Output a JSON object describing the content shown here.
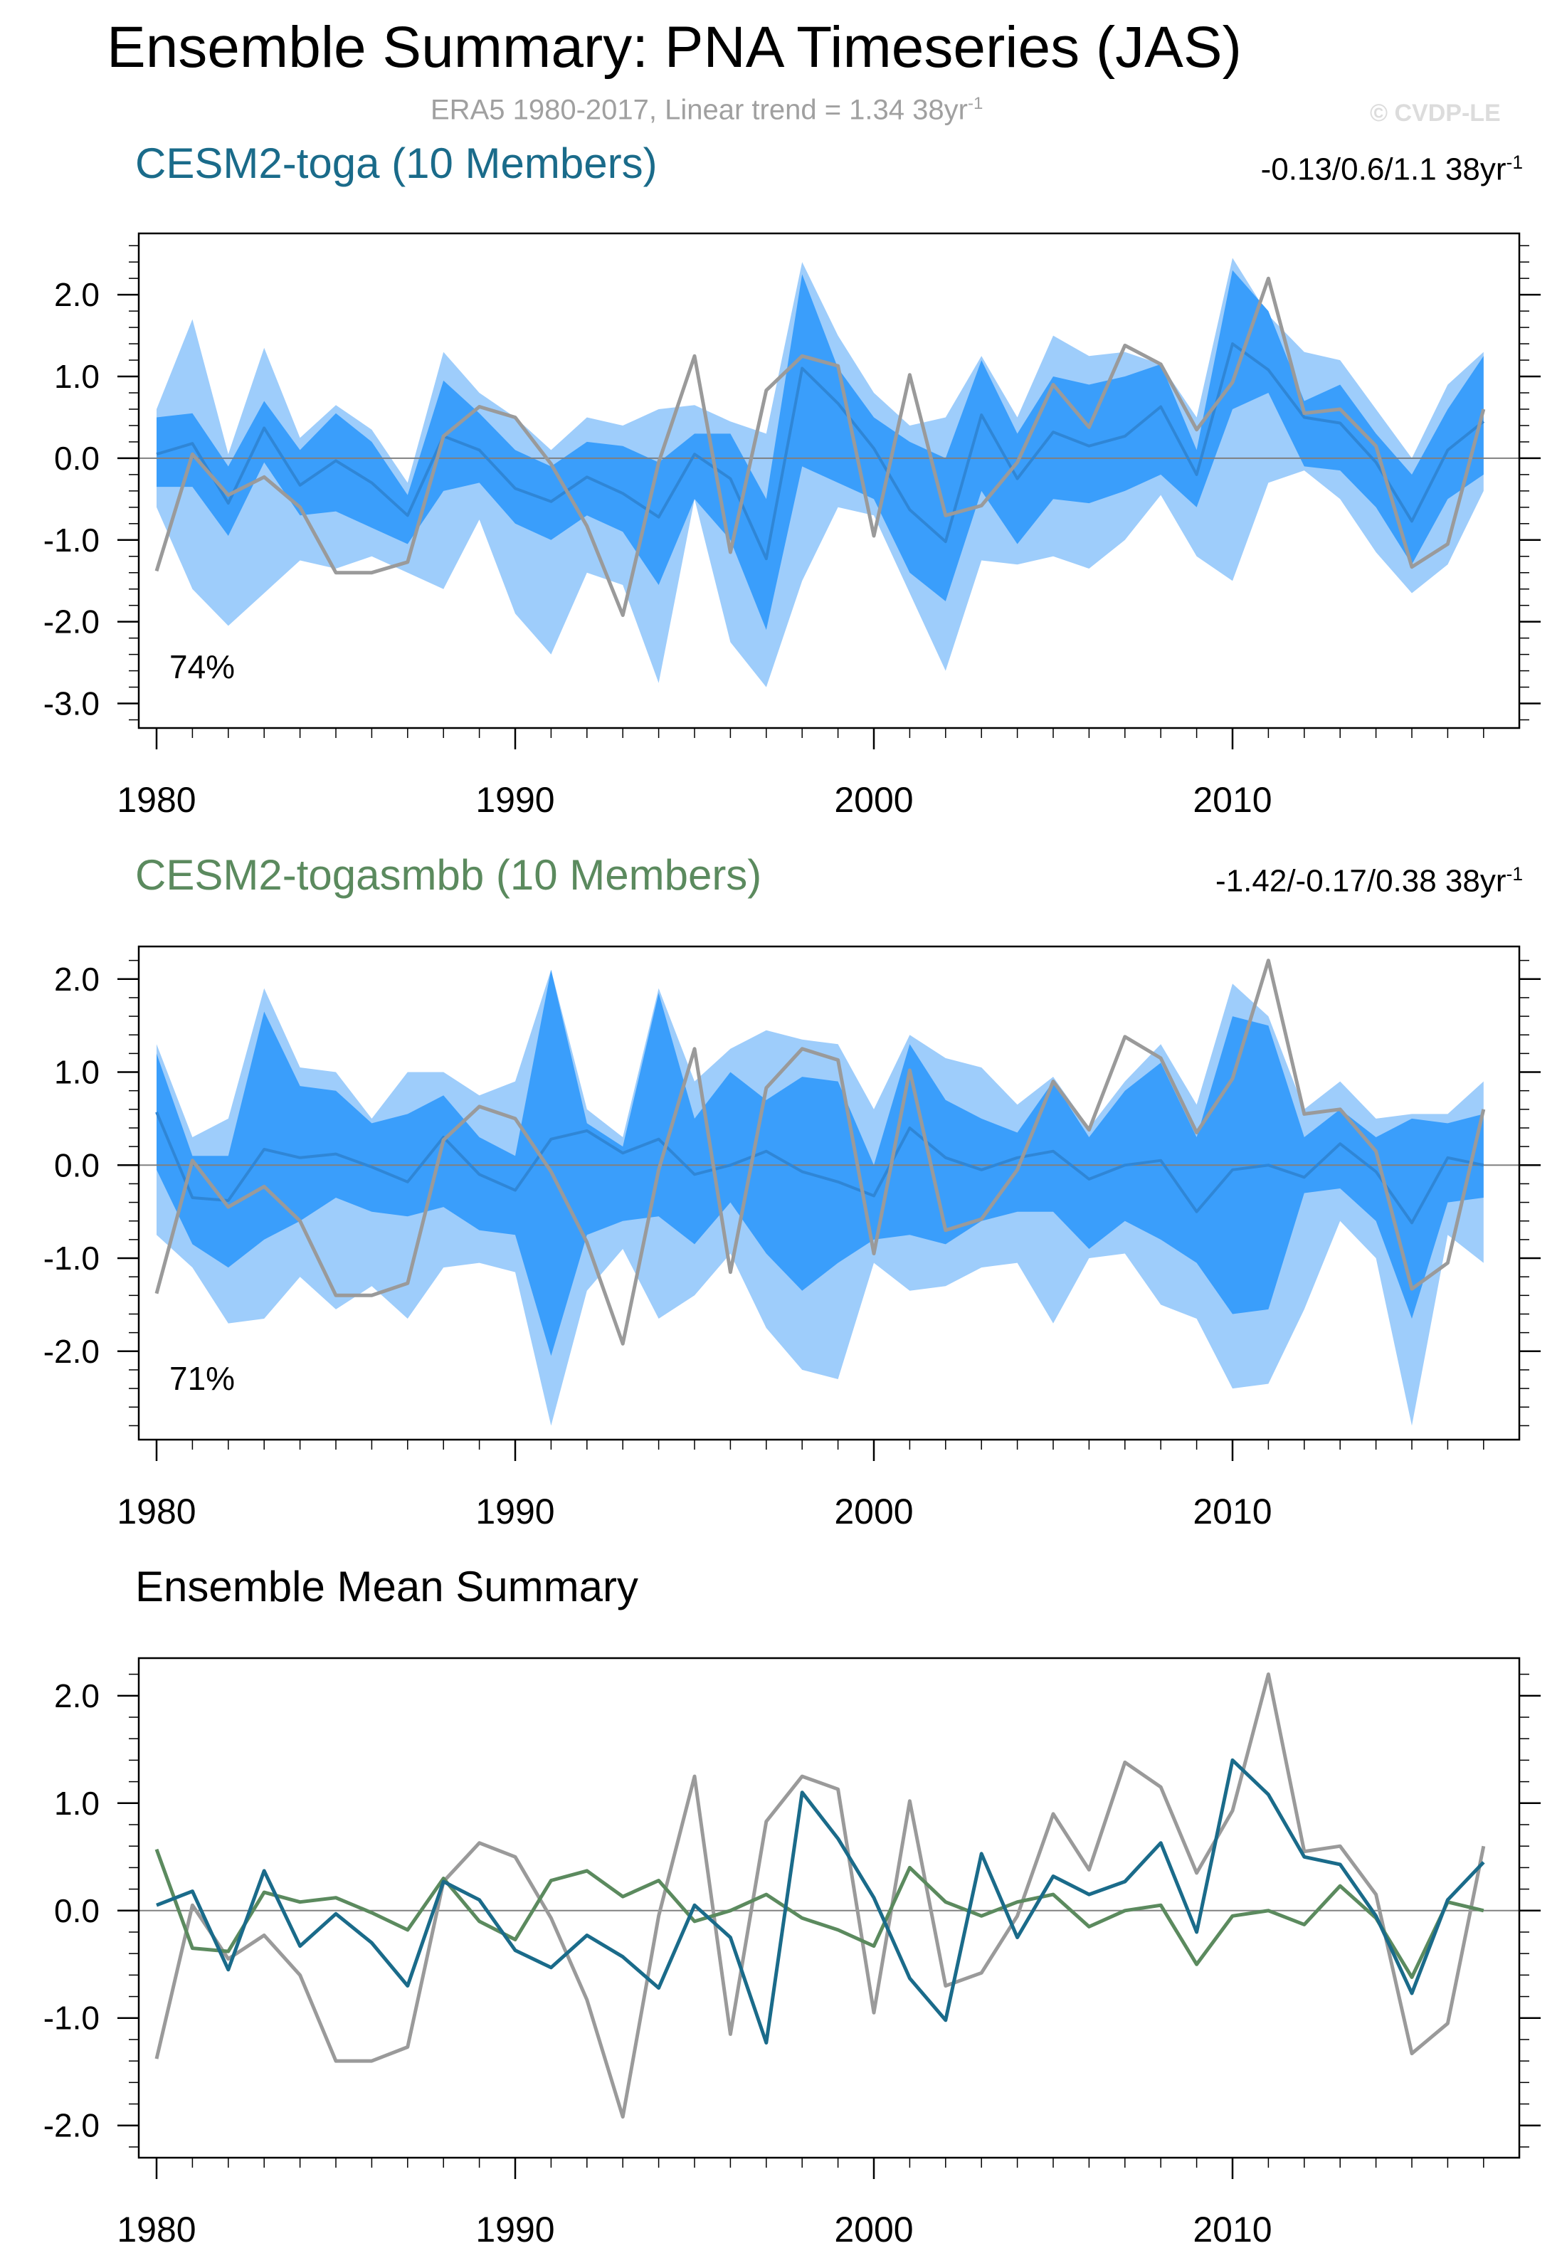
{
  "title": "Ensemble Summary: PNA Timeseries (JAS)",
  "subtitle": {
    "text": "ERA5 1980-2017, Linear trend = 1.34 38yr",
    "sup": "-1"
  },
  "credit": "© CVDP-LE",
  "colors": {
    "toga": "#1a6b8a",
    "togasmbb": "#5b8a5e",
    "obs": "#9a9a9a",
    "band_outer": "#9ecdfb",
    "band_inner": "#3a9efb",
    "member_mean": "#2f86d6",
    "zero_line": "#808080"
  },
  "panels": [
    {
      "name": "CESM2-toga (10 Members)",
      "trend": "-0.13/0.6/1.1 38yr",
      "trend_sup": "-1",
      "percent": "74%"
    },
    {
      "name": "CESM2-togasmbb (10 Members)",
      "trend": "-1.42/-0.17/0.38 38yr",
      "trend_sup": "-1",
      "percent": "71%"
    }
  ],
  "ensemble_title": "Ensemble Mean Summary",
  "chart_data": [
    {
      "type": "area",
      "title": "CESM2-toga (10 Members)",
      "x": [
        1980,
        1981,
        1982,
        1983,
        1984,
        1985,
        1986,
        1987,
        1988,
        1989,
        1990,
        1991,
        1992,
        1993,
        1994,
        1995,
        1996,
        1997,
        1998,
        1999,
        2000,
        2001,
        2002,
        2003,
        2004,
        2005,
        2006,
        2007,
        2008,
        2009,
        2010,
        2011,
        2012,
        2013,
        2014,
        2015,
        2016,
        2017
      ],
      "xlim": [
        1980,
        2017.5
      ],
      "ylim": [
        -3.3,
        2.75
      ],
      "yticks": [
        -3.0,
        -2.0,
        -1.0,
        0.0,
        1.0,
        2.0
      ],
      "ytick_labels": [
        "-3.0",
        "-2.0",
        "-1.0",
        "0.0",
        "1.0",
        "2.0"
      ],
      "xticks": [
        1980,
        1990,
        2000,
        2010
      ],
      "xtick_labels": [
        "1980",
        "1990",
        "2000",
        "2010"
      ],
      "series": [
        {
          "name": "outer_upper",
          "values": [
            0.6,
            1.7,
            0.05,
            1.35,
            0.25,
            0.65,
            0.35,
            -0.3,
            1.3,
            0.8,
            0.5,
            0.1,
            0.5,
            0.4,
            0.6,
            0.65,
            0.45,
            0.3,
            2.4,
            1.5,
            0.8,
            0.4,
            0.5,
            1.25,
            0.5,
            1.5,
            1.25,
            1.3,
            1.15,
            0.5,
            2.45,
            1.75,
            1.3,
            1.2,
            0.6,
            0.0,
            0.9,
            1.3
          ]
        },
        {
          "name": "inner_upper",
          "values": [
            0.5,
            0.55,
            -0.1,
            0.7,
            0.1,
            0.55,
            0.2,
            -0.45,
            0.95,
            0.55,
            0.1,
            -0.1,
            0.2,
            0.15,
            -0.05,
            0.3,
            0.3,
            -0.5,
            2.25,
            1.1,
            0.5,
            0.2,
            0.0,
            1.2,
            0.3,
            1.0,
            0.9,
            1.0,
            1.15,
            0.1,
            2.3,
            1.8,
            0.7,
            0.9,
            0.3,
            -0.2,
            0.6,
            1.25
          ]
        },
        {
          "name": "inner_lower",
          "values": [
            -0.35,
            -0.35,
            -0.95,
            -0.05,
            -0.7,
            -0.65,
            -0.85,
            -1.05,
            -0.4,
            -0.3,
            -0.8,
            -1.0,
            -0.7,
            -0.9,
            -1.55,
            -0.5,
            -1.0,
            -2.1,
            -0.1,
            -0.3,
            -0.5,
            -1.4,
            -1.75,
            -0.4,
            -1.05,
            -0.5,
            -0.55,
            -0.4,
            -0.2,
            -0.6,
            0.6,
            0.8,
            -0.1,
            -0.15,
            -0.6,
            -1.3,
            -0.5,
            -0.2
          ]
        },
        {
          "name": "outer_lower",
          "values": [
            -0.6,
            -1.6,
            -2.05,
            -1.65,
            -1.25,
            -1.35,
            -1.2,
            -1.4,
            -1.6,
            -0.75,
            -1.9,
            -2.4,
            -1.4,
            -1.55,
            -2.75,
            -0.5,
            -2.25,
            -2.8,
            -1.5,
            -0.6,
            -0.7,
            -1.65,
            -2.6,
            -1.25,
            -1.3,
            -1.2,
            -1.35,
            -1.0,
            -0.45,
            -1.2,
            -1.5,
            -0.3,
            -0.15,
            -0.5,
            -1.15,
            -1.65,
            -1.3,
            -0.4
          ]
        },
        {
          "name": "CESM2-toga ensemble mean",
          "values": [
            0.05,
            0.18,
            -0.55,
            0.37,
            -0.33,
            -0.03,
            -0.3,
            -0.7,
            0.27,
            0.1,
            -0.37,
            -0.53,
            -0.23,
            -0.43,
            -0.72,
            0.05,
            -0.25,
            -1.23,
            1.1,
            0.67,
            0.12,
            -0.63,
            -1.02,
            0.53,
            -0.25,
            0.32,
            0.15,
            0.27,
            0.63,
            -0.2,
            1.4,
            1.08,
            0.5,
            0.43,
            -0.05,
            -0.77,
            0.1,
            0.45
          ]
        },
        {
          "name": "ERA5",
          "values": [
            -1.38,
            0.05,
            -0.45,
            -0.23,
            -0.6,
            -1.4,
            -1.4,
            -1.27,
            0.27,
            0.63,
            0.5,
            -0.07,
            -0.83,
            -1.92,
            -0.05,
            1.25,
            -1.15,
            0.83,
            1.25,
            1.13,
            -0.95,
            1.02,
            -0.7,
            -0.58,
            -0.05,
            0.9,
            0.38,
            1.38,
            1.15,
            0.35,
            0.93,
            2.2,
            0.55,
            0.6,
            0.15,
            -1.33,
            -1.05,
            0.6
          ]
        }
      ],
      "annotation": "74%"
    },
    {
      "type": "area",
      "title": "CESM2-togasmbb (10 Members)",
      "x": [
        1980,
        1981,
        1982,
        1983,
        1984,
        1985,
        1986,
        1987,
        1988,
        1989,
        1990,
        1991,
        1992,
        1993,
        1994,
        1995,
        1996,
        1997,
        1998,
        1999,
        2000,
        2001,
        2002,
        2003,
        2004,
        2005,
        2006,
        2007,
        2008,
        2009,
        2010,
        2011,
        2012,
        2013,
        2014,
        2015,
        2016,
        2017
      ],
      "xlim": [
        1980,
        2017.5
      ],
      "ylim": [
        -2.95,
        2.35
      ],
      "yticks": [
        -2.0,
        -1.0,
        0.0,
        1.0,
        2.0
      ],
      "ytick_labels": [
        "-2.0",
        "-1.0",
        "0.0",
        "1.0",
        "2.0"
      ],
      "xticks": [
        1980,
        1990,
        2000,
        2010
      ],
      "xtick_labels": [
        "1980",
        "1990",
        "2000",
        "2010"
      ],
      "series": [
        {
          "name": "outer_upper",
          "values": [
            1.3,
            0.3,
            0.5,
            1.9,
            1.05,
            1.0,
            0.5,
            1.0,
            1.0,
            0.75,
            0.9,
            2.1,
            0.6,
            0.3,
            1.9,
            0.9,
            1.25,
            1.45,
            1.35,
            1.3,
            0.6,
            1.4,
            1.15,
            1.05,
            0.65,
            0.95,
            0.4,
            0.9,
            1.3,
            0.65,
            1.95,
            1.6,
            0.6,
            0.9,
            0.5,
            0.55,
            0.55,
            0.9
          ]
        },
        {
          "name": "inner_upper",
          "values": [
            1.2,
            0.1,
            0.1,
            1.65,
            0.85,
            0.8,
            0.45,
            0.55,
            0.75,
            0.3,
            0.1,
            2.1,
            0.45,
            0.2,
            1.85,
            0.5,
            1.0,
            0.7,
            0.95,
            0.9,
            0.0,
            1.3,
            0.7,
            0.5,
            0.35,
            0.9,
            0.3,
            0.8,
            1.1,
            0.3,
            1.6,
            1.5,
            0.3,
            0.6,
            0.3,
            0.5,
            0.45,
            0.55
          ]
        },
        {
          "name": "inner_lower",
          "values": [
            -0.05,
            -0.85,
            -1.1,
            -0.8,
            -0.6,
            -0.35,
            -0.5,
            -0.55,
            -0.45,
            -0.7,
            -0.75,
            -2.05,
            -0.75,
            -0.6,
            -0.55,
            -0.85,
            -0.4,
            -0.95,
            -1.35,
            -1.05,
            -0.8,
            -0.75,
            -0.85,
            -0.6,
            -0.5,
            -0.5,
            -0.9,
            -0.6,
            -0.8,
            -1.05,
            -1.6,
            -1.55,
            -0.3,
            -0.25,
            -0.6,
            -1.65,
            -0.4,
            -0.35
          ]
        },
        {
          "name": "outer_lower",
          "values": [
            -0.75,
            -1.1,
            -1.7,
            -1.65,
            -1.2,
            -1.55,
            -1.3,
            -1.65,
            -1.1,
            -1.05,
            -1.15,
            -2.8,
            -1.35,
            -0.9,
            -1.65,
            -1.4,
            -0.95,
            -1.75,
            -2.2,
            -2.3,
            -1.05,
            -1.35,
            -1.3,
            -1.1,
            -1.05,
            -1.7,
            -1.0,
            -0.95,
            -1.5,
            -1.65,
            -2.4,
            -2.35,
            -1.55,
            -0.6,
            -1.0,
            -2.8,
            -0.75,
            -1.05
          ]
        },
        {
          "name": "CESM2-togasmbb ensemble mean",
          "values": [
            0.57,
            -0.35,
            -0.38,
            0.17,
            0.08,
            0.12,
            -0.02,
            -0.18,
            0.3,
            -0.1,
            -0.27,
            0.28,
            0.37,
            0.13,
            0.28,
            -0.1,
            0.0,
            0.15,
            -0.07,
            -0.18,
            -0.33,
            0.4,
            0.08,
            -0.05,
            0.08,
            0.15,
            -0.15,
            0.0,
            0.05,
            -0.5,
            -0.05,
            0.0,
            -0.13,
            0.23,
            -0.07,
            -0.62,
            0.08,
            0.0
          ]
        },
        {
          "name": "ERA5",
          "values": [
            -1.38,
            0.05,
            -0.45,
            -0.23,
            -0.6,
            -1.4,
            -1.4,
            -1.27,
            0.27,
            0.63,
            0.5,
            -0.07,
            -0.83,
            -1.92,
            -0.05,
            1.25,
            -1.15,
            0.83,
            1.25,
            1.13,
            -0.95,
            1.02,
            -0.7,
            -0.58,
            -0.05,
            0.9,
            0.38,
            1.38,
            1.15,
            0.35,
            0.93,
            2.2,
            0.55,
            0.6,
            0.15,
            -1.33,
            -1.05,
            0.6
          ]
        }
      ],
      "annotation": "71%"
    },
    {
      "type": "line",
      "title": "Ensemble Mean Summary",
      "x": [
        1980,
        1981,
        1982,
        1983,
        1984,
        1985,
        1986,
        1987,
        1988,
        1989,
        1990,
        1991,
        1992,
        1993,
        1994,
        1995,
        1996,
        1997,
        1998,
        1999,
        2000,
        2001,
        2002,
        2003,
        2004,
        2005,
        2006,
        2007,
        2008,
        2009,
        2010,
        2011,
        2012,
        2013,
        2014,
        2015,
        2016,
        2017
      ],
      "xlim": [
        1980,
        2017.5
      ],
      "ylim": [
        -2.3,
        2.35
      ],
      "yticks": [
        -2.0,
        -1.0,
        0.0,
        1.0,
        2.0
      ],
      "ytick_labels": [
        "-2.0",
        "-1.0",
        "0.0",
        "1.0",
        "2.0"
      ],
      "xticks": [
        1980,
        1990,
        2000,
        2010
      ],
      "xtick_labels": [
        "1980",
        "1990",
        "2000",
        "2010"
      ],
      "series": [
        {
          "name": "ERA5",
          "values": [
            -1.38,
            0.05,
            -0.45,
            -0.23,
            -0.6,
            -1.4,
            -1.4,
            -1.27,
            0.27,
            0.63,
            0.5,
            -0.07,
            -0.83,
            -1.92,
            -0.05,
            1.25,
            -1.15,
            0.83,
            1.25,
            1.13,
            -0.95,
            1.02,
            -0.7,
            -0.58,
            -0.05,
            0.9,
            0.38,
            1.38,
            1.15,
            0.35,
            0.93,
            2.2,
            0.55,
            0.6,
            0.15,
            -1.33,
            -1.05,
            0.6
          ]
        },
        {
          "name": "CESM2-togasmbb",
          "values": [
            0.57,
            -0.35,
            -0.38,
            0.17,
            0.08,
            0.12,
            -0.02,
            -0.18,
            0.3,
            -0.1,
            -0.27,
            0.28,
            0.37,
            0.13,
            0.28,
            -0.1,
            0.0,
            0.15,
            -0.07,
            -0.18,
            -0.33,
            0.4,
            0.08,
            -0.05,
            0.08,
            0.15,
            -0.15,
            0.0,
            0.05,
            -0.5,
            -0.05,
            0.0,
            -0.13,
            0.23,
            -0.07,
            -0.62,
            0.08,
            0.0
          ]
        },
        {
          "name": "CESM2-toga",
          "values": [
            0.05,
            0.18,
            -0.55,
            0.37,
            -0.33,
            -0.03,
            -0.3,
            -0.7,
            0.27,
            0.1,
            -0.37,
            -0.53,
            -0.23,
            -0.43,
            -0.72,
            0.05,
            -0.25,
            -1.23,
            1.1,
            0.67,
            0.12,
            -0.63,
            -1.02,
            0.53,
            -0.25,
            0.32,
            0.15,
            0.27,
            0.63,
            -0.2,
            1.4,
            1.08,
            0.5,
            0.43,
            -0.05,
            -0.77,
            0.1,
            0.45
          ]
        }
      ]
    }
  ]
}
